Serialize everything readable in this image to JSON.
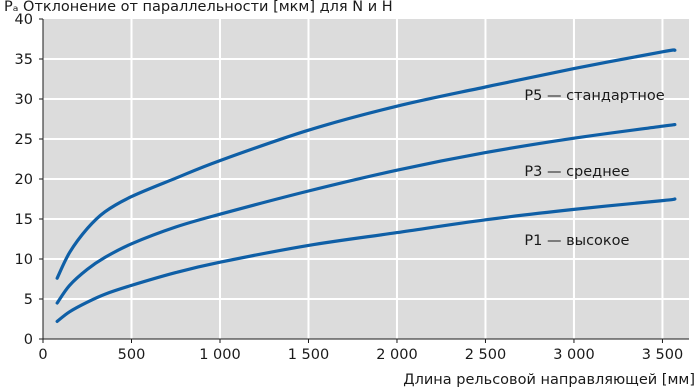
{
  "chart_data": {
    "type": "line",
    "title": "Pₐ Отклонение от параллельности [мкм] для N и H",
    "xlabel": "Длина рельсовой направляющей [мм]",
    "ylabel": "Pₐ Отклонение от параллельности [мкм] для N и H",
    "xlim": [
      0,
      3650
    ],
    "ylim": [
      0,
      40
    ],
    "x_ticks": [
      0,
      500,
      1000,
      1500,
      2000,
      2500,
      3000,
      3500
    ],
    "x_tick_labels": [
      "0",
      "500",
      "1 000",
      "1 500",
      "2 000",
      "2 500",
      "3 000",
      "3 500"
    ],
    "y_ticks": [
      0,
      5,
      10,
      15,
      20,
      25,
      30,
      35,
      40
    ],
    "y_tick_labels": [
      "0",
      "5",
      "10",
      "15",
      "20",
      "25",
      "30",
      "35",
      "40"
    ],
    "grid": true,
    "colors": {
      "plot_background": "#dcdcdc",
      "grid": "#ffffff",
      "series": "#0f5fa6"
    },
    "series": [
      {
        "name": "P5 — стандартное",
        "x": [
          80,
          150,
          250,
          350,
          500,
          750,
          1000,
          1500,
          2000,
          2500,
          3000,
          3500,
          3570
        ],
        "y": [
          7.6,
          10.8,
          13.8,
          15.9,
          17.8,
          20.1,
          22.3,
          26.1,
          29.1,
          31.5,
          33.8,
          35.9,
          36.1
        ]
      },
      {
        "name": "P3 — среднее",
        "x": [
          80,
          150,
          250,
          350,
          500,
          750,
          1000,
          1500,
          2000,
          2500,
          3000,
          3500,
          3570
        ],
        "y": [
          4.5,
          6.7,
          8.7,
          10.2,
          11.9,
          14.0,
          15.6,
          18.5,
          21.1,
          23.3,
          25.1,
          26.6,
          26.8
        ]
      },
      {
        "name": "P1 — высокое",
        "x": [
          80,
          150,
          250,
          350,
          500,
          750,
          1000,
          1500,
          2000,
          2500,
          3000,
          3500,
          3570
        ],
        "y": [
          2.2,
          3.4,
          4.6,
          5.6,
          6.7,
          8.3,
          9.6,
          11.7,
          13.3,
          14.9,
          16.2,
          17.3,
          17.5
        ]
      }
    ]
  }
}
